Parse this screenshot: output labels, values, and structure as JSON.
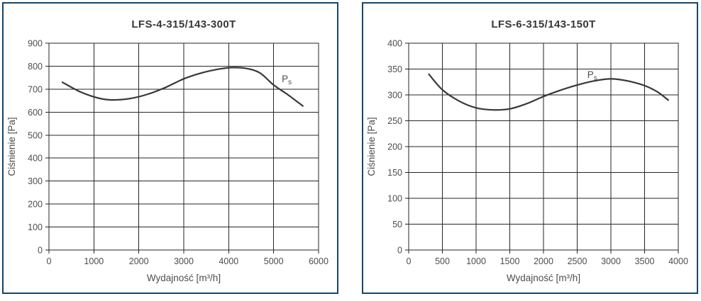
{
  "colors": {
    "panel_border": "#17456b",
    "grid": "#262626",
    "curve": "#383838",
    "text": "#4d4d4d",
    "title_text": "#373737"
  },
  "chart_data": [
    {
      "type": "line",
      "title": "LFS-4-315/143-300T",
      "xlabel": "Wydajność [m³/h]",
      "ylabel": "Ciśnienie [Pa]",
      "xlim": [
        0,
        6000
      ],
      "ylim": [
        0,
        900
      ],
      "x_ticks": [
        0,
        1000,
        2000,
        3000,
        4000,
        5000,
        6000
      ],
      "y_ticks": [
        0,
        100,
        200,
        300,
        400,
        500,
        600,
        700,
        800,
        900
      ],
      "grid": true,
      "legend": "none",
      "series": [
        {
          "name": "Ps",
          "label": {
            "main": "P",
            "sub": "s"
          },
          "label_pos": {
            "x": 5180,
            "y": 730
          },
          "x": [
            300,
            700,
            1100,
            1400,
            1800,
            2200,
            2600,
            3000,
            3400,
            3800,
            4100,
            4400,
            4700,
            5000,
            5300,
            5650
          ],
          "y": [
            730,
            688,
            661,
            653,
            659,
            678,
            708,
            745,
            771,
            788,
            794,
            790,
            770,
            718,
            678,
            627
          ]
        }
      ]
    },
    {
      "type": "line",
      "title": "LFS-6-315/143-150T",
      "xlabel": "Wydajność [m³/h]",
      "ylabel": "Ciśnienie [Pa]",
      "xlim": [
        0,
        4000
      ],
      "ylim": [
        0,
        400
      ],
      "x_ticks": [
        0,
        500,
        1000,
        1500,
        2000,
        2500,
        3000,
        3500,
        4000
      ],
      "y_ticks": [
        0,
        50,
        100,
        150,
        200,
        250,
        300,
        350,
        400
      ],
      "grid": true,
      "legend": "none",
      "series": [
        {
          "name": "Ps",
          "label": {
            "main": "P",
            "sub": "s"
          },
          "label_pos": {
            "x": 2650,
            "y": 333
          },
          "x": [
            300,
            500,
            750,
            1000,
            1250,
            1500,
            1750,
            2000,
            2250,
            2500,
            2750,
            3000,
            3250,
            3500,
            3700,
            3850
          ],
          "y": [
            340,
            310,
            288,
            275,
            271,
            273,
            283,
            297,
            309,
            319,
            327,
            331,
            327,
            318,
            305,
            290
          ]
        }
      ]
    }
  ]
}
